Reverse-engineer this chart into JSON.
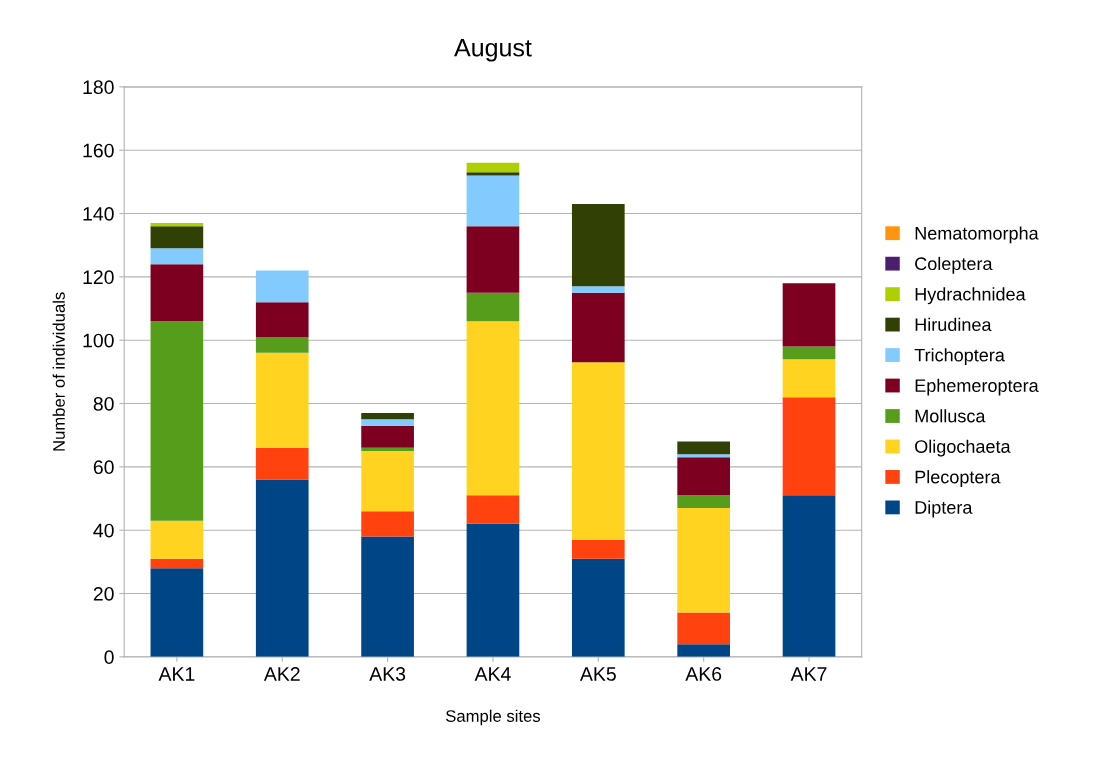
{
  "chart_data": {
    "type": "bar",
    "title": "August",
    "xlabel": "Sample sites",
    "ylabel": "Number of individuals",
    "stacked": true,
    "categories": [
      "AK1",
      "AK2",
      "AK3",
      "AK4",
      "AK5",
      "AK6",
      "AK7"
    ],
    "series": [
      {
        "name": "Diptera",
        "color": "#004586",
        "values": [
          28,
          56,
          38,
          42,
          31,
          4,
          51
        ]
      },
      {
        "name": "Plecoptera",
        "color": "#ff420e",
        "values": [
          3,
          10,
          8,
          9,
          6,
          10,
          31
        ]
      },
      {
        "name": "Oligochaeta",
        "color": "#ffd320",
        "values": [
          12,
          30,
          19,
          55,
          56,
          33,
          12
        ]
      },
      {
        "name": "Mollusca",
        "color": "#579d1c",
        "values": [
          63,
          5,
          1,
          9,
          0,
          4,
          4
        ]
      },
      {
        "name": "Ephemeroptera",
        "color": "#7e0021",
        "values": [
          18,
          11,
          7,
          21,
          22,
          12,
          20
        ]
      },
      {
        "name": "Trichoptera",
        "color": "#83caff",
        "values": [
          5,
          10,
          2,
          16,
          2,
          1,
          0
        ]
      },
      {
        "name": "Hirudinea",
        "color": "#314004",
        "values": [
          7,
          0,
          2,
          1,
          26,
          4,
          0
        ]
      },
      {
        "name": "Hydrachnidea",
        "color": "#aecf00",
        "values": [
          1,
          0,
          0,
          3,
          0,
          0,
          0
        ]
      },
      {
        "name": "Coleptera",
        "color": "#4b1f6f",
        "values": [
          0,
          0,
          0,
          0,
          0,
          0,
          0
        ]
      },
      {
        "name": "Nematomorpha",
        "color": "#ff950e",
        "values": [
          0,
          0,
          0,
          0,
          0,
          0,
          0
        ]
      }
    ],
    "ylim": [
      0,
      180
    ],
    "yticks": [
      0,
      20,
      40,
      60,
      80,
      100,
      120,
      140,
      160,
      180
    ],
    "grid": "y",
    "legend": "right"
  }
}
